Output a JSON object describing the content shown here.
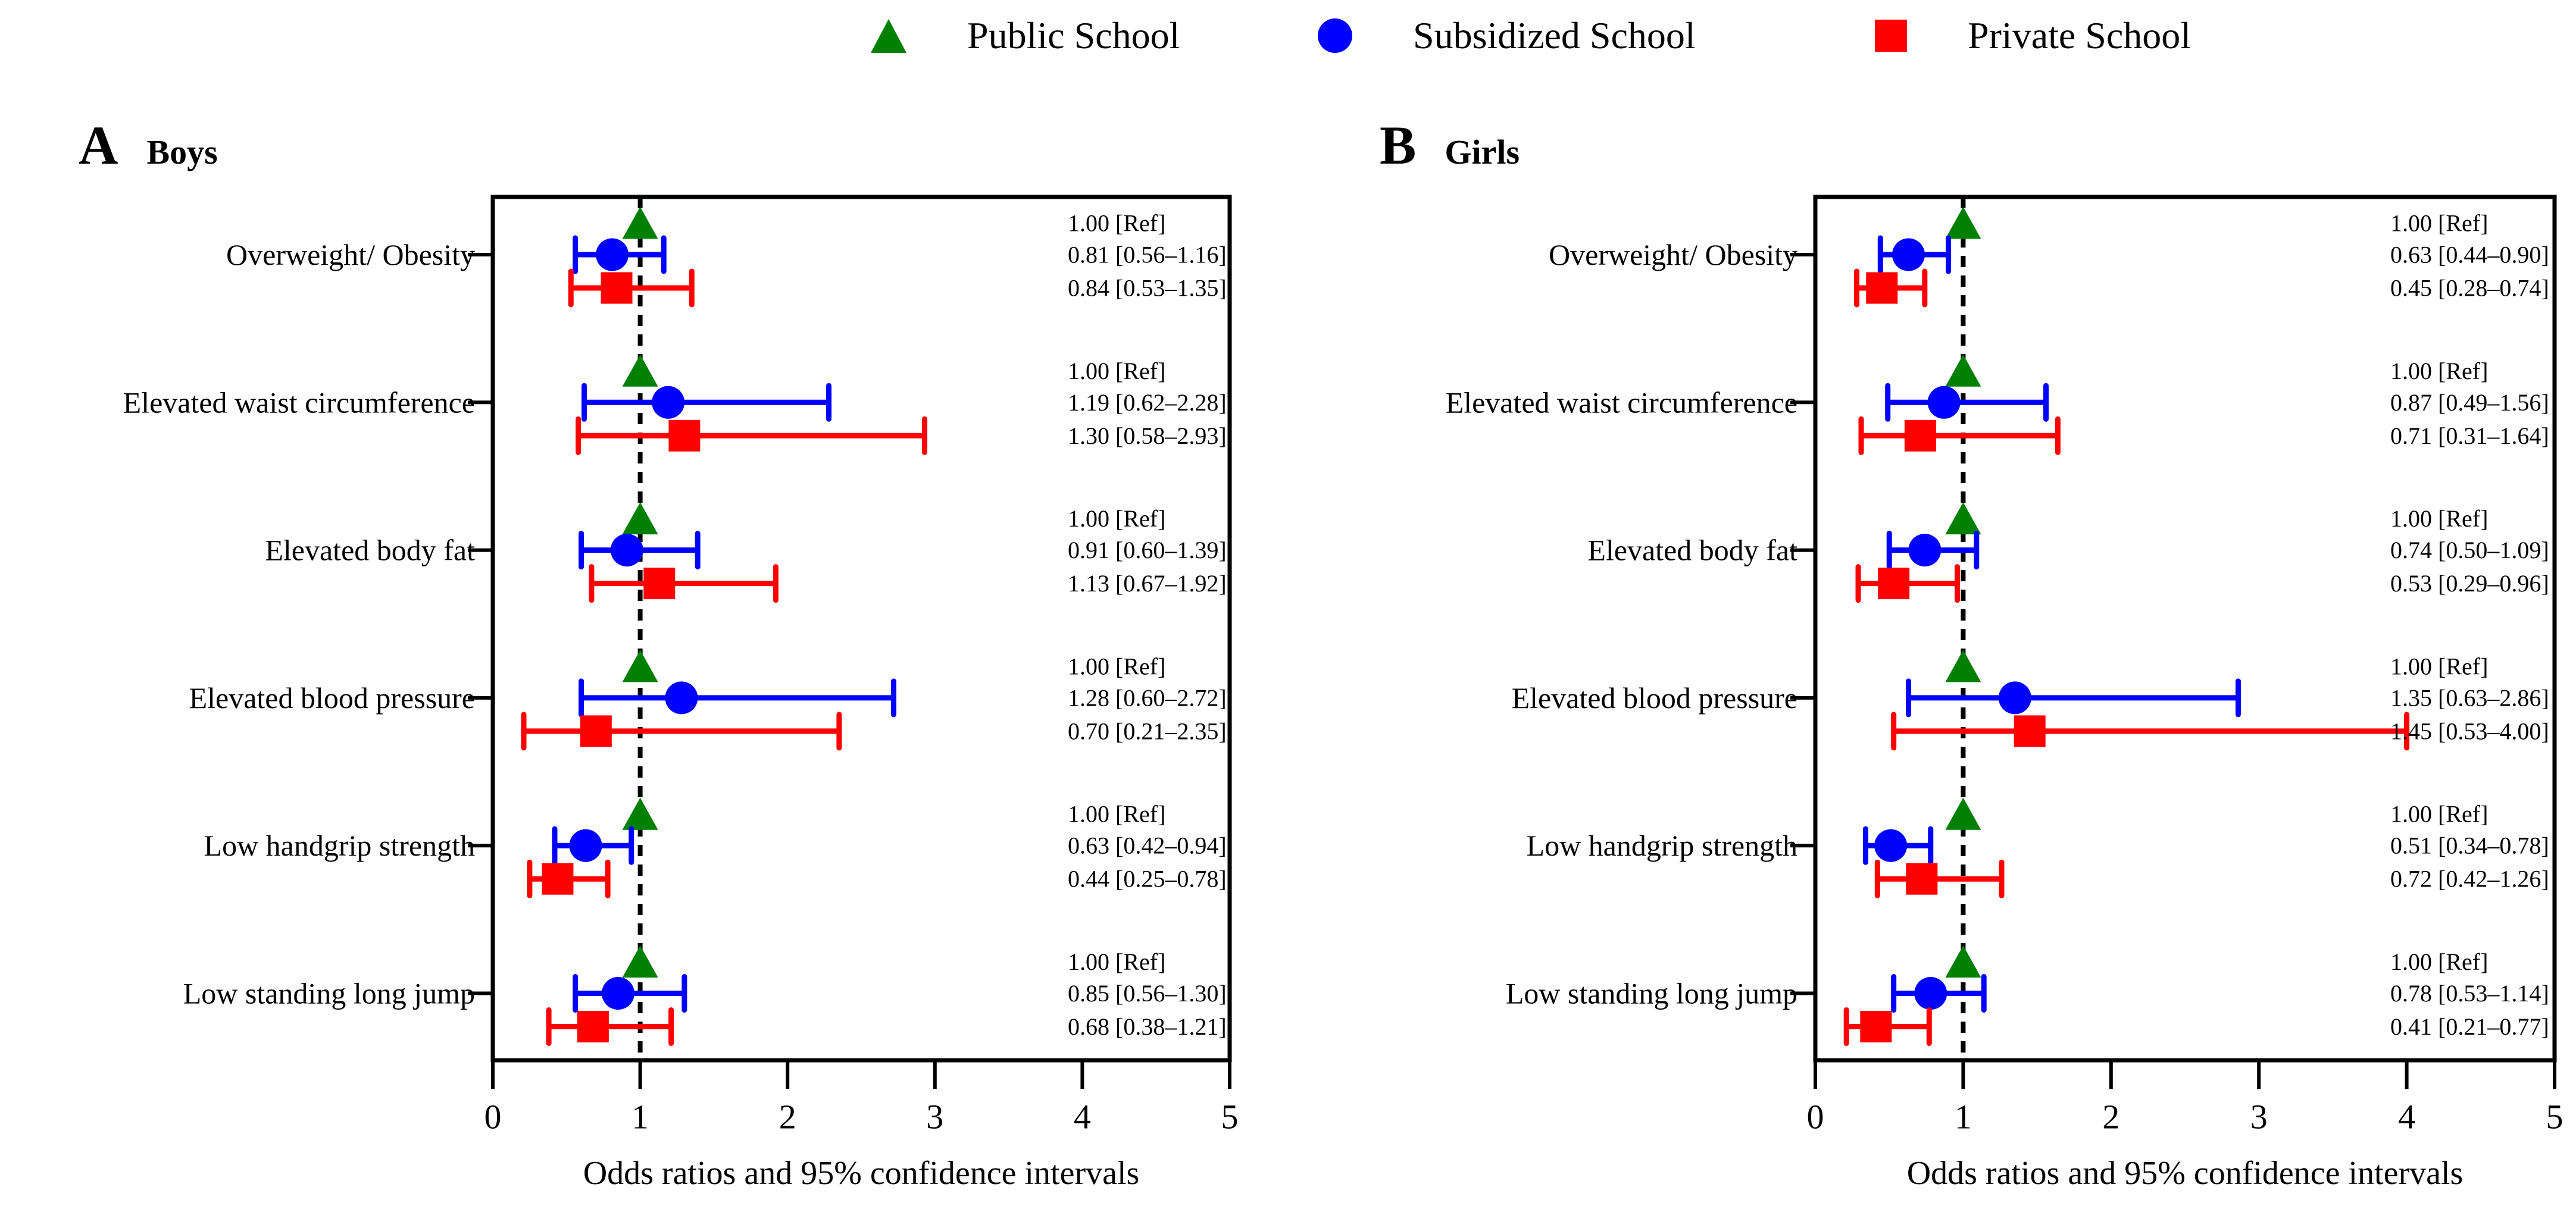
{
  "page": {
    "background": "#ffffff"
  },
  "legend": {
    "items": [
      {
        "key": "public",
        "label": "Public School",
        "marker": "triangle",
        "color": "#008000"
      },
      {
        "key": "subsidized",
        "label": "Subsidized School",
        "marker": "circle",
        "color": "#0000ff"
      },
      {
        "key": "private",
        "label": "Private School",
        "marker": "square",
        "color": "#ff0000"
      }
    ]
  },
  "chart_data": [
    {
      "type": "scatter",
      "panel": "A",
      "title": "Boys",
      "xlabel": "Odds ratios and 95% confidence intervals",
      "xlim": [
        0,
        5
      ],
      "x_ticks": [
        0,
        1,
        2,
        3,
        4,
        5
      ],
      "reference_line_x": 1,
      "grid": false,
      "rows": [
        {
          "label": "Overweight/ Obesity",
          "values": {
            "public": {
              "or": 1.0,
              "lo": null,
              "hi": null,
              "text": "1.00 [Ref]"
            },
            "subsidized": {
              "or": 0.81,
              "lo": 0.56,
              "hi": 1.16,
              "text": "0.81 [0.56–1.16]"
            },
            "private": {
              "or": 0.84,
              "lo": 0.53,
              "hi": 1.35,
              "text": "0.84 [0.53–1.35]"
            }
          }
        },
        {
          "label": "Elevated waist circumference",
          "values": {
            "public": {
              "or": 1.0,
              "lo": null,
              "hi": null,
              "text": "1.00 [Ref]"
            },
            "subsidized": {
              "or": 1.19,
              "lo": 0.62,
              "hi": 2.28,
              "text": "1.19 [0.62–2.28]"
            },
            "private": {
              "or": 1.3,
              "lo": 0.58,
              "hi": 2.93,
              "text": "1.30 [0.58–2.93]"
            }
          }
        },
        {
          "label": "Elevated body fat",
          "values": {
            "public": {
              "or": 1.0,
              "lo": null,
              "hi": null,
              "text": "1.00 [Ref]"
            },
            "subsidized": {
              "or": 0.91,
              "lo": 0.6,
              "hi": 1.39,
              "text": "0.91 [0.60–1.39]"
            },
            "private": {
              "or": 1.13,
              "lo": 0.67,
              "hi": 1.92,
              "text": "1.13 [0.67–1.92]"
            }
          }
        },
        {
          "label": "Elevated blood pressure",
          "values": {
            "public": {
              "or": 1.0,
              "lo": null,
              "hi": null,
              "text": "1.00 [Ref]"
            },
            "subsidized": {
              "or": 1.28,
              "lo": 0.6,
              "hi": 2.72,
              "text": "1.28 [0.60–2.72]"
            },
            "private": {
              "or": 0.7,
              "lo": 0.21,
              "hi": 2.35,
              "text": "0.70 [0.21–2.35]"
            }
          }
        },
        {
          "label": "Low handgrip strength",
          "values": {
            "public": {
              "or": 1.0,
              "lo": null,
              "hi": null,
              "text": "1.00 [Ref]"
            },
            "subsidized": {
              "or": 0.63,
              "lo": 0.42,
              "hi": 0.94,
              "text": "0.63 [0.42–0.94]"
            },
            "private": {
              "or": 0.44,
              "lo": 0.25,
              "hi": 0.78,
              "text": "0.44 [0.25–0.78]"
            }
          }
        },
        {
          "label": "Low standing long jump",
          "values": {
            "public": {
              "or": 1.0,
              "lo": null,
              "hi": null,
              "text": "1.00 [Ref]"
            },
            "subsidized": {
              "or": 0.85,
              "lo": 0.56,
              "hi": 1.3,
              "text": "0.85 [0.56–1.30]"
            },
            "private": {
              "or": 0.68,
              "lo": 0.38,
              "hi": 1.21,
              "text": "0.68 [0.38–1.21]"
            }
          }
        }
      ]
    },
    {
      "type": "scatter",
      "panel": "B",
      "title": "Girls",
      "xlabel": "Odds ratios and 95% confidence intervals",
      "xlim": [
        0,
        5
      ],
      "x_ticks": [
        0,
        1,
        2,
        3,
        4,
        5
      ],
      "reference_line_x": 1,
      "grid": false,
      "rows": [
        {
          "label": "Overweight/ Obesity",
          "values": {
            "public": {
              "or": 1.0,
              "lo": null,
              "hi": null,
              "text": "1.00 [Ref]"
            },
            "subsidized": {
              "or": 0.63,
              "lo": 0.44,
              "hi": 0.9,
              "text": "0.63 [0.44–0.90]"
            },
            "private": {
              "or": 0.45,
              "lo": 0.28,
              "hi": 0.74,
              "text": "0.45 [0.28–0.74]"
            }
          }
        },
        {
          "label": "Elevated waist circumference",
          "values": {
            "public": {
              "or": 1.0,
              "lo": null,
              "hi": null,
              "text": "1.00 [Ref]"
            },
            "subsidized": {
              "or": 0.87,
              "lo": 0.49,
              "hi": 1.56,
              "text": "0.87 [0.49–1.56]"
            },
            "private": {
              "or": 0.71,
              "lo": 0.31,
              "hi": 1.64,
              "text": "0.71 [0.31–1.64]"
            }
          }
        },
        {
          "label": "Elevated body fat",
          "values": {
            "public": {
              "or": 1.0,
              "lo": null,
              "hi": null,
              "text": "1.00 [Ref]"
            },
            "subsidized": {
              "or": 0.74,
              "lo": 0.5,
              "hi": 1.09,
              "text": "0.74 [0.50–1.09]"
            },
            "private": {
              "or": 0.53,
              "lo": 0.29,
              "hi": 0.96,
              "text": "0.53 [0.29–0.96]"
            }
          }
        },
        {
          "label": "Elevated blood pressure",
          "values": {
            "public": {
              "or": 1.0,
              "lo": null,
              "hi": null,
              "text": "1.00 [Ref]"
            },
            "subsidized": {
              "or": 1.35,
              "lo": 0.63,
              "hi": 2.86,
              "text": "1.35 [0.63–2.86]"
            },
            "private": {
              "or": 1.45,
              "lo": 0.53,
              "hi": 4.0,
              "text": "1.45 [0.53–4.00]"
            }
          }
        },
        {
          "label": "Low handgrip strength",
          "values": {
            "public": {
              "or": 1.0,
              "lo": null,
              "hi": null,
              "text": "1.00 [Ref]"
            },
            "subsidized": {
              "or": 0.51,
              "lo": 0.34,
              "hi": 0.78,
              "text": "0.51 [0.34–0.78]"
            },
            "private": {
              "or": 0.72,
              "lo": 0.42,
              "hi": 1.26,
              "text": "0.72 [0.42–1.26]"
            }
          }
        },
        {
          "label": "Low standing long jump",
          "values": {
            "public": {
              "or": 1.0,
              "lo": null,
              "hi": null,
              "text": "1.00 [Ref]"
            },
            "subsidized": {
              "or": 0.78,
              "lo": 0.53,
              "hi": 1.14,
              "text": "0.78 [0.53–1.14]"
            },
            "private": {
              "or": 0.41,
              "lo": 0.21,
              "hi": 0.77,
              "text": "0.41 [0.21–0.77]"
            }
          }
        }
      ]
    }
  ]
}
